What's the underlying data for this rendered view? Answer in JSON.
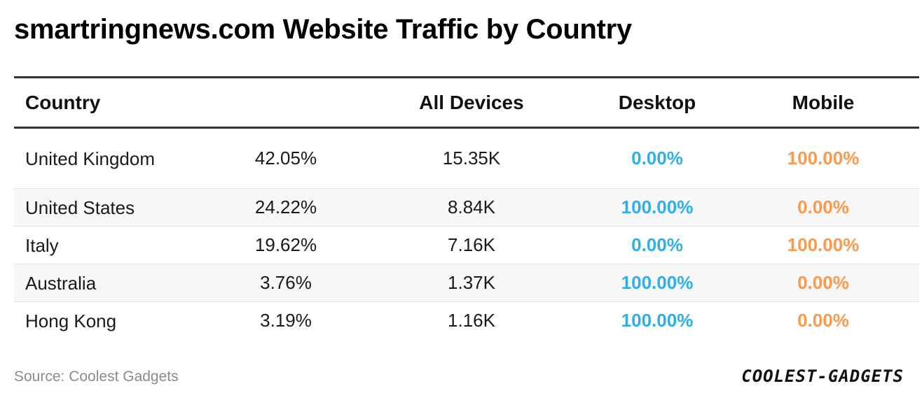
{
  "title": "smartringnews.com Website Traffic by Country",
  "columns": {
    "country": "Country",
    "all_devices": "All Devices",
    "desktop": "Desktop",
    "mobile": "Mobile"
  },
  "rows": [
    {
      "country": "United Kingdom",
      "share": "42.05%",
      "all_devices": "15.35K",
      "desktop": "0.00%",
      "mobile": "100.00%"
    },
    {
      "country": "United States",
      "share": "24.22%",
      "all_devices": "8.84K",
      "desktop": "100.00%",
      "mobile": "0.00%"
    },
    {
      "country": "Italy",
      "share": "19.62%",
      "all_devices": "7.16K",
      "desktop": "0.00%",
      "mobile": "100.00%"
    },
    {
      "country": "Australia",
      "share": "3.76%",
      "all_devices": "1.37K",
      "desktop": "100.00%",
      "mobile": "0.00%"
    },
    {
      "country": "Hong Kong",
      "share": "3.19%",
      "all_devices": "1.16K",
      "desktop": "100.00%",
      "mobile": "0.00%"
    }
  ],
  "footer": {
    "source": "Source: Coolest Gadgets",
    "logo": "COOLEST-GADGETS"
  },
  "colors": {
    "desktop": "#2bb0ef",
    "mobile": "#fa9950"
  },
  "chart_data": {
    "type": "table",
    "title": "smartringnews.com Website Traffic by Country",
    "columns": [
      "Country",
      "",
      "All Devices",
      "Desktop",
      "Mobile"
    ],
    "rows": [
      [
        "United Kingdom",
        "42.05%",
        "15.35K",
        "0.00%",
        "100.00%"
      ],
      [
        "United States",
        "24.22%",
        "8.84K",
        "100.00%",
        "0.00%"
      ],
      [
        "Italy",
        "19.62%",
        "7.16K",
        "0.00%",
        "100.00%"
      ],
      [
        "Australia",
        "3.76%",
        "1.37K",
        "100.00%",
        "0.00%"
      ],
      [
        "Hong Kong",
        "3.19%",
        "1.16K",
        "100.00%",
        "0.00%"
      ]
    ]
  }
}
